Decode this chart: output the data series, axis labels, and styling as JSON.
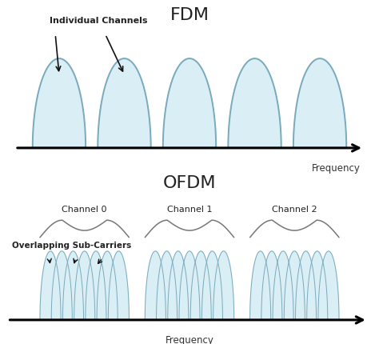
{
  "background_color": "#ffffff",
  "fill_color": "#daeef6",
  "edge_color": "#7aaabb",
  "fdm_title": "FDM",
  "ofdm_title": "OFDM",
  "fdm_n_channels": 5,
  "ofdm_n_groups": 3,
  "ofdm_carriers_per_group": 7,
  "freq_label": "Frequency",
  "fdm_annotation_text": "Individual Channels",
  "ofdm_annotation_text": "Overlapping Sub-Carriers",
  "channel_labels": [
    "Channel 0",
    "Channel 1",
    "Channel 2"
  ],
  "text_color": "#222222",
  "arrow_color": "#111111"
}
